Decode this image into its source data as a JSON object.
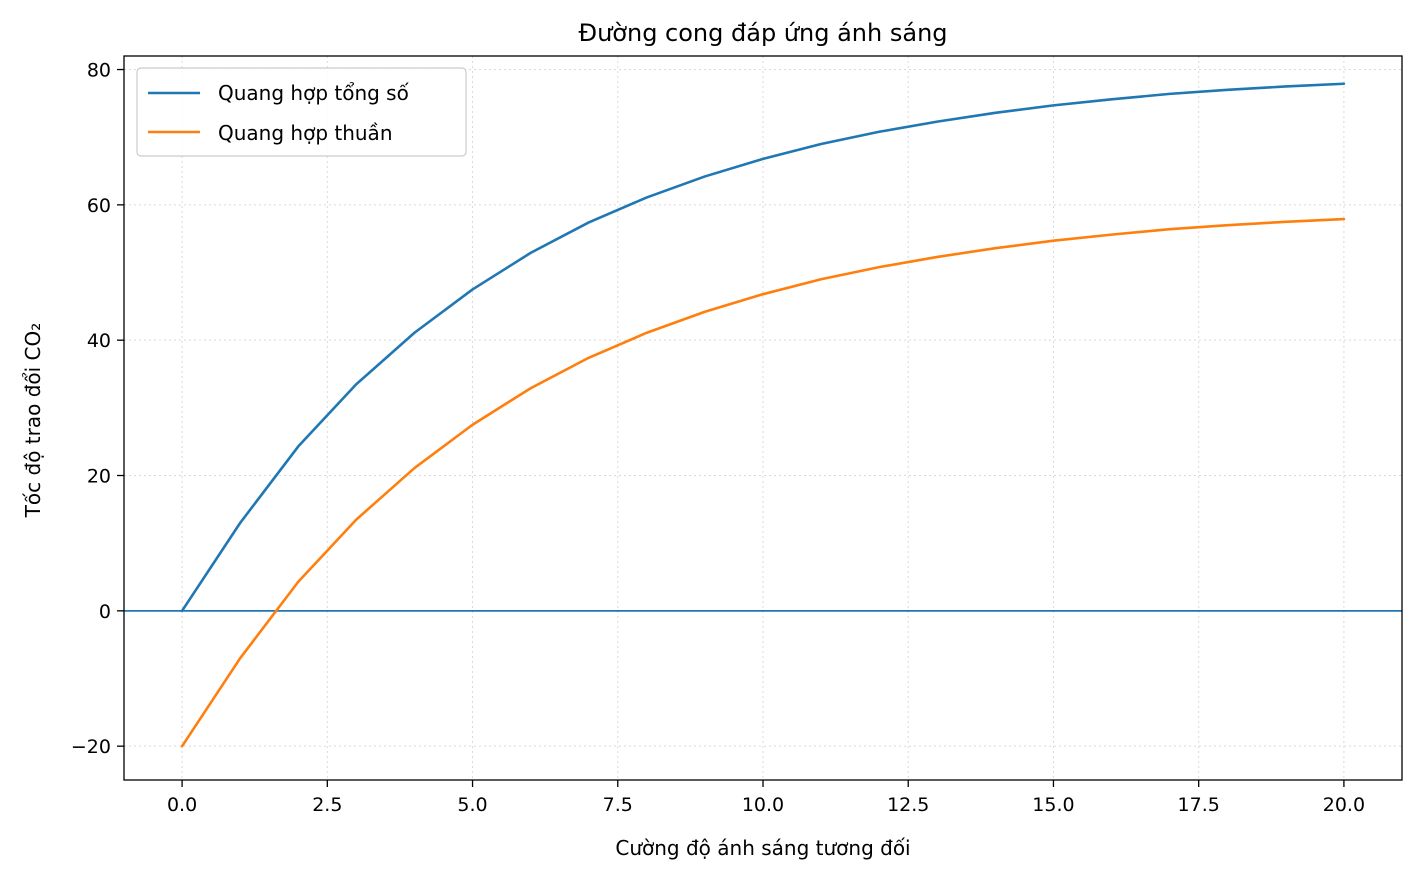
{
  "chart_data": {
    "type": "line",
    "title": "Đường cong đáp ứng ánh sáng",
    "xlabel": "Cường độ ánh sáng tương đối",
    "ylabel": "Tốc độ trao đổi CO₂",
    "xlim": [
      -1,
      21
    ],
    "ylim": [
      -25,
      82
    ],
    "xticks": [
      0,
      2.5,
      5,
      7.5,
      10,
      12.5,
      15,
      17.5,
      20
    ],
    "xtick_labels": [
      "0.0",
      "2.5",
      "5.0",
      "7.5",
      "10.0",
      "12.5",
      "15.0",
      "17.5",
      "20.0"
    ],
    "yticks": [
      -20,
      0,
      20,
      40,
      60,
      80
    ],
    "ytick_labels": [
      "−20",
      "0",
      "20",
      "40",
      "60",
      "80"
    ],
    "grid": true,
    "legend_position": "upper-left",
    "reference_line": {
      "y": 0,
      "color": "#1f77b4"
    },
    "x": [
      0,
      1,
      2,
      3,
      4,
      5,
      6,
      7,
      8,
      9,
      10,
      11,
      12,
      13,
      14,
      15,
      16,
      17,
      18,
      19,
      20
    ],
    "series": [
      {
        "name": "Quang hợp tổng số",
        "color": "#1f77b4",
        "values": [
          0,
          13.0,
          24.3,
          33.5,
          41.1,
          47.5,
          52.9,
          57.4,
          61.1,
          64.2,
          66.8,
          69.0,
          70.8,
          72.3,
          73.6,
          74.7,
          75.6,
          76.4,
          77.0,
          77.5,
          77.9
        ]
      },
      {
        "name": "Quang hợp thuần",
        "color": "#ff7f0e",
        "values": [
          -20,
          -7.0,
          4.3,
          13.5,
          21.1,
          27.5,
          32.9,
          37.4,
          41.1,
          44.2,
          46.8,
          49.0,
          50.8,
          52.3,
          53.6,
          54.7,
          55.6,
          56.4,
          57.0,
          57.5,
          57.9
        ]
      }
    ]
  }
}
